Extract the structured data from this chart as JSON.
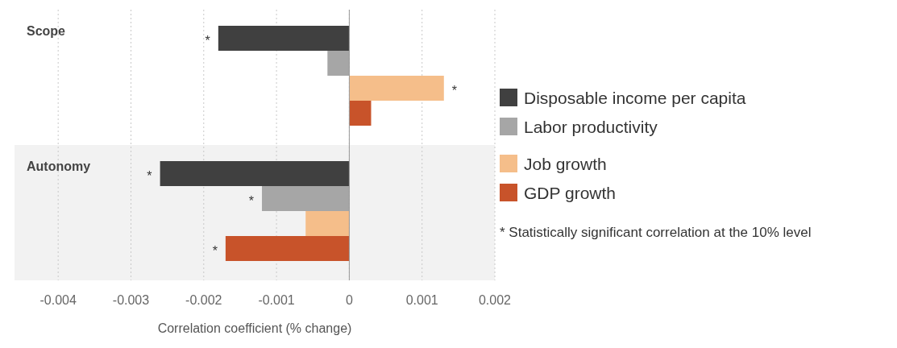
{
  "chart_data": {
    "type": "bar",
    "orientation": "horizontal",
    "xlabel": "Correlation coefficient (% change)",
    "categories": [
      "Scope",
      "Autonomy"
    ],
    "series": [
      {
        "name": "Disposable income per capita",
        "color": "#404040",
        "values": [
          -0.0018,
          -0.0026
        ],
        "value_labels": [
          "*",
          "*"
        ]
      },
      {
        "name": "Labor productivity",
        "color": "#a6a6a6",
        "values": [
          -0.0003,
          -0.0012
        ],
        "value_labels": [
          null,
          "*"
        ]
      },
      {
        "name": "Job growth",
        "color": "#f5be8a",
        "values": [
          0.0013,
          -0.0006
        ],
        "value_labels": [
          "*",
          null
        ]
      },
      {
        "name": "GDP growth",
        "color": "#c8532a",
        "values": [
          0.0003,
          -0.0017
        ],
        "value_labels": [
          null,
          "*"
        ]
      }
    ],
    "xlim": [
      -0.0046,
      0.002
    ],
    "xticks": [
      -0.004,
      -0.003,
      -0.002,
      -0.001,
      0,
      0.001,
      0.002
    ],
    "grid": "x",
    "legend": "right",
    "annotations": [
      "* Statistically significant correlation at the 10% level"
    ]
  }
}
